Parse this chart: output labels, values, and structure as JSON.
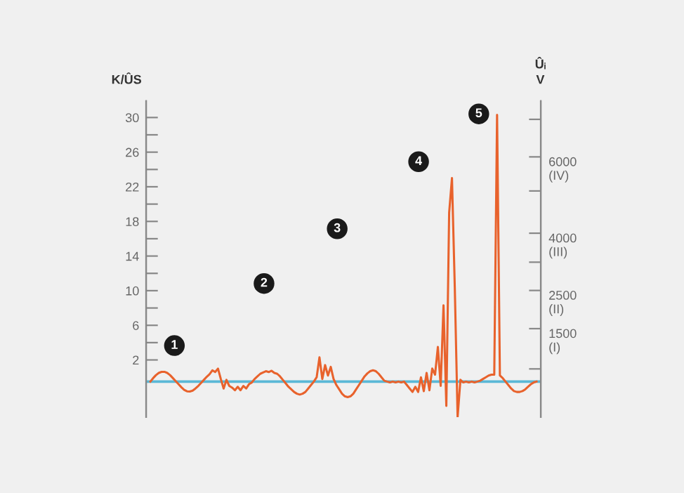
{
  "chart_data": {
    "type": "line",
    "ylabel": "K/ÛS",
    "y2label": "Ûᵢ\nV",
    "categories": [
      null,
      null,
      null,
      null,
      null,
      null,
      null,
      null,
      null,
      null,
      null,
      null,
      null,
      null,
      null,
      null,
      null,
      null,
      null,
      null,
      null,
      null,
      null,
      null,
      null,
      null,
      null,
      null,
      null,
      null,
      null,
      null,
      null,
      null,
      null,
      null,
      null,
      null,
      null,
      null,
      null,
      null,
      null,
      null,
      null,
      null,
      null,
      null,
      null,
      null,
      null,
      null,
      null,
      null,
      null,
      null,
      null,
      null,
      null,
      null,
      null,
      null,
      null,
      null,
      null,
      null,
      null,
      null,
      null,
      null,
      null,
      null,
      null,
      null,
      null,
      null,
      null,
      null,
      null,
      null,
      null,
      null,
      null,
      null,
      null,
      null,
      null,
      null,
      null,
      null,
      null,
      null,
      null,
      null,
      null,
      null,
      null,
      null,
      null,
      null,
      null,
      null,
      null,
      null,
      null,
      null,
      null,
      null,
      null,
      null,
      null,
      null,
      null,
      null,
      null,
      null,
      null,
      null,
      null,
      null,
      null,
      null,
      null,
      null,
      null,
      null,
      null,
      null,
      null,
      null,
      null,
      null,
      null,
      null,
      null,
      null,
      null,
      null
    ],
    "series": [
      {
        "color": "#e8622c",
        "values": [
          -0.5,
          -0.1,
          0.25,
          0.5,
          0.62,
          0.63,
          0.5,
          0.25,
          -0.1,
          -0.45,
          -0.8,
          -1.15,
          -1.45,
          -1.62,
          -1.65,
          -1.55,
          -1.3,
          -1.0,
          -0.65,
          -0.3,
          0.05,
          0.35,
          0.8,
          0.6,
          1.0,
          -0.2,
          -1.3,
          -0.3,
          -1.0,
          -1.2,
          -1.5,
          -1.1,
          -1.5,
          -1.0,
          -1.3,
          -0.8,
          -0.6,
          -0.2,
          0.1,
          0.4,
          0.55,
          0.7,
          0.6,
          0.75,
          0.5,
          0.4,
          0.1,
          -0.3,
          -0.7,
          -1.1,
          -1.4,
          -1.7,
          -1.9,
          -2.0,
          -1.9,
          -1.7,
          -1.3,
          -0.9,
          -0.5,
          0,
          2.3,
          -0.2,
          1.4,
          0.2,
          1.2,
          -0.2,
          -0.9,
          -1.4,
          -1.9,
          -2.2,
          -2.3,
          -2.2,
          -1.9,
          -1.4,
          -0.9,
          -0.4,
          0.1,
          0.45,
          0.7,
          0.8,
          0.7,
          0.4,
          0.0,
          -0.4,
          -0.5,
          -0.6,
          -0.5,
          -0.6,
          -0.5,
          -0.6,
          -0.5,
          -0.9,
          -1.3,
          -1.7,
          -1.1,
          -1.7,
          0.0,
          -1.6,
          0.5,
          -1.5,
          1.0,
          0.3,
          3.5,
          -1.0,
          8.3,
          -3.3,
          19.0,
          23.0,
          10.4,
          -4.6,
          -0.3,
          -0.6,
          -0.5,
          -0.6,
          -0.5,
          -0.6,
          -0.5,
          -0.4,
          -0.2,
          0.0,
          0.2,
          0.3,
          0.3,
          30.3,
          0.2,
          -0.1,
          -0.5,
          -0.9,
          -1.3,
          -1.6,
          -1.7,
          -1.7,
          -1.6,
          -1.4,
          -1.1,
          -0.8,
          -0.6,
          -0.5
        ]
      }
    ],
    "ylim": [
      -4.6,
      31.9
    ],
    "yticks": [
      2,
      {
        "value": 4,
        "label": null
      },
      6,
      {
        "value": 8,
        "label": null
      },
      10,
      {
        "value": 12,
        "label": null
      },
      14,
      {
        "value": 16,
        "label": null
      },
      18,
      {
        "value": 20,
        "label": null
      },
      22,
      {
        "value": 24,
        "label": null
      },
      26,
      {
        "value": 28,
        "label": null
      },
      30
    ],
    "y2lim": [
      -817,
      7462
    ],
    "y2ticks": [
      {
        "value": 445,
        "label": null
      },
      {
        "value": 1500,
        "label": "1500\n(I)"
      },
      {
        "value": 2500,
        "label": "2500\n(II)"
      },
      {
        "value": 3241,
        "label": null
      },
      {
        "value": 4000,
        "label": "4000\n(III)"
      },
      {
        "value": 5107,
        "label": null
      },
      {
        "value": 6000,
        "label": "6000\n(IV)"
      },
      {
        "value": 6983,
        "label": null
      }
    ],
    "ref_lines": [
      {
        "axis": "y",
        "value": -0.5,
        "color": "#5bb8d6"
      }
    ],
    "annotations": [
      "1",
      "2",
      "3",
      "4",
      "5"
    ],
    "grid": false,
    "legend": false,
    "marker": "none",
    "line_style": "solid"
  }
}
